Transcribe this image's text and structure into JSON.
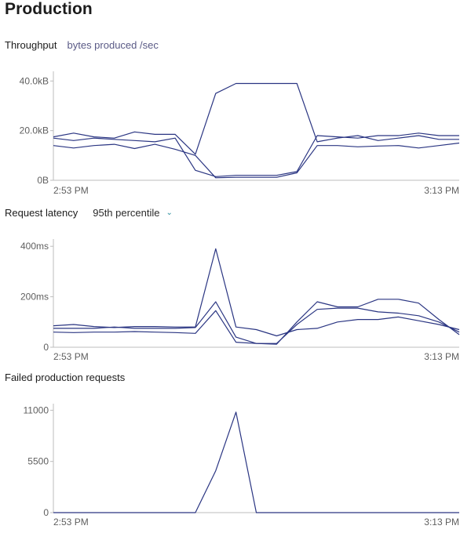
{
  "page": {
    "title": "Production"
  },
  "sections": {
    "throughput": {
      "title": "Throughput",
      "subtitle": "bytes produced /sec"
    },
    "latency": {
      "title": "Request latency",
      "dropdown_value": "95th percentile",
      "chevron_icon": "chevron-down-icon"
    },
    "failed": {
      "title": "Failed production requests"
    }
  },
  "colors": {
    "series": "#2a3582",
    "axis": "#bdbdbd",
    "chevron": "#2c8f9e"
  },
  "chart_data": [
    {
      "type": "line",
      "title": "Throughput",
      "subtitle": "bytes produced /sec",
      "x_tick_labels": [
        "2:53 PM",
        "3:13 PM"
      ],
      "y_tick_labels": [
        "0B",
        "20.0kB",
        "40.0kB"
      ],
      "y_ticks": [
        0,
        20000,
        40000
      ],
      "ylim": [
        0,
        42000
      ],
      "x_points": 21,
      "series": [
        {
          "values": [
            17500,
            19000,
            17500,
            17000,
            19500,
            18500,
            18500,
            10500,
            35000,
            39000,
            39000,
            39000,
            39000,
            15500,
            17000,
            18000,
            16000,
            17000,
            18000,
            16500,
            16500
          ]
        },
        {
          "values": [
            17000,
            16000,
            17000,
            16500,
            16000,
            15500,
            17000,
            4000,
            1500,
            2000,
            2000,
            2000,
            3500,
            18000,
            17500,
            17000,
            18000,
            18000,
            19000,
            18000,
            18000
          ]
        },
        {
          "values": [
            14000,
            13000,
            14000,
            14500,
            12800,
            14500,
            12500,
            10000,
            1000,
            1200,
            1200,
            1200,
            3000,
            14000,
            14000,
            13500,
            13800,
            14000,
            13000,
            14000,
            15000
          ]
        }
      ]
    },
    {
      "type": "line",
      "title": "Request latency",
      "x_tick_labels": [
        "2:53 PM",
        "3:13 PM"
      ],
      "y_tick_labels": [
        "0",
        "200ms",
        "400ms"
      ],
      "y_ticks": [
        0,
        200,
        400
      ],
      "ylim": [
        0,
        410
      ],
      "x_points": 21,
      "series": [
        {
          "values": [
            85,
            90,
            82,
            78,
            82,
            82,
            80,
            80,
            390,
            80,
            70,
            45,
            70,
            75,
            100,
            110,
            110,
            120,
            105,
            90,
            70
          ]
        },
        {
          "values": [
            75,
            75,
            75,
            80,
            75,
            75,
            75,
            78,
            180,
            40,
            15,
            12,
            100,
            180,
            160,
            160,
            190,
            190,
            175,
            110,
            50
          ]
        },
        {
          "values": [
            60,
            58,
            60,
            60,
            62,
            60,
            58,
            55,
            145,
            20,
            15,
            15,
            90,
            150,
            155,
            155,
            140,
            135,
            125,
            100,
            60
          ]
        }
      ]
    },
    {
      "type": "line",
      "title": "Failed production requests",
      "x_tick_labels": [
        "2:53 PM",
        "3:13 PM"
      ],
      "y_tick_labels": [
        "0",
        "5500",
        "11000"
      ],
      "y_ticks": [
        0,
        5500,
        11000
      ],
      "ylim": [
        0,
        11200
      ],
      "x_points": 21,
      "series": [
        {
          "values": [
            0,
            0,
            0,
            0,
            0,
            0,
            0,
            0,
            4500,
            10800,
            0,
            0,
            0,
            0,
            0,
            0,
            0,
            0,
            0,
            0,
            0
          ]
        }
      ]
    }
  ]
}
